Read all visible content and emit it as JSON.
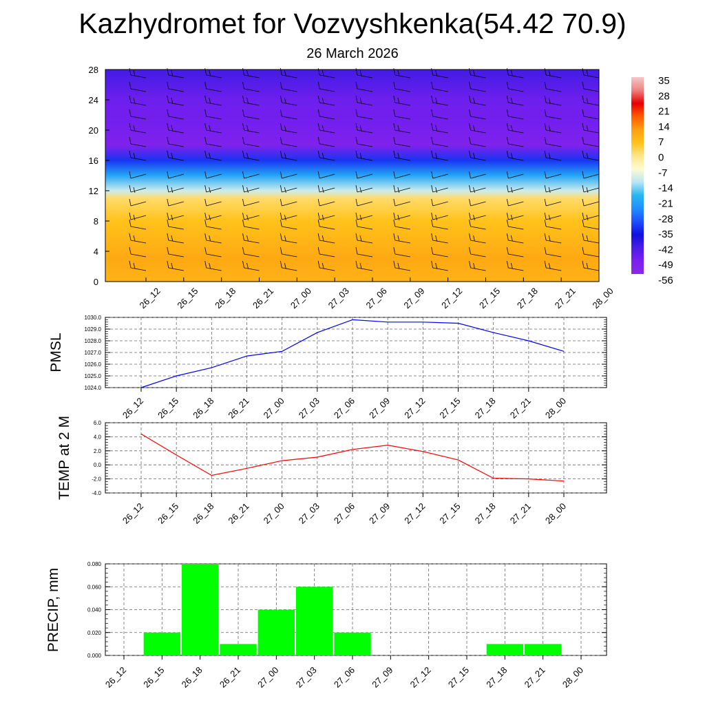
{
  "title": "Kazhydromet for Vozvyshkenka(54.42 70.9)",
  "subtitle": "26 March 2026",
  "colors": {
    "pmsl_line": "#0000ff",
    "temp_line": "#ff0000",
    "precip_bar": "#00ff00",
    "grid": "#666666"
  },
  "time_labels": [
    "26_12",
    "26_15",
    "26_18",
    "26_21",
    "27_00",
    "27_03",
    "27_06",
    "27_09",
    "27_12",
    "27_15",
    "27_18",
    "27_21",
    "28_00"
  ],
  "chart_data": [
    {
      "type": "heatmap",
      "name_hint": "vertical-section",
      "x": [
        "26_12",
        "26_15",
        "26_18",
        "26_21",
        "27_00",
        "27_03",
        "27_06",
        "27_09",
        "27_12",
        "27_15",
        "27_18",
        "27_21",
        "28_00"
      ],
      "yticks": [
        "0",
        "4",
        "8",
        "12",
        "16",
        "20",
        "24",
        "28"
      ],
      "ylim": [
        0,
        28
      ],
      "colorbar_labels": [
        "35",
        "28",
        "21",
        "14",
        "7",
        "0",
        "-7",
        "-14",
        "-21",
        "-28",
        "-35",
        "-42",
        "-49",
        "-56"
      ],
      "colorbar_range": [
        -63,
        42
      ],
      "profile": [
        {
          "y": 0,
          "value": 10
        },
        {
          "y": 3,
          "value": 12
        },
        {
          "y": 8,
          "value": 7
        },
        {
          "y": 11,
          "value": 2
        },
        {
          "y": 12,
          "value": -12
        },
        {
          "y": 14,
          "value": -24
        },
        {
          "y": 16,
          "value": -38
        },
        {
          "y": 18,
          "value": -58
        },
        {
          "y": 21,
          "value": -55
        },
        {
          "y": 24,
          "value": -54
        },
        {
          "y": 28,
          "value": -48
        }
      ]
    },
    {
      "type": "line",
      "ylabel": "PMSL",
      "x": [
        "26_12",
        "26_15",
        "26_18",
        "26_21",
        "27_00",
        "27_03",
        "27_06",
        "27_09",
        "27_12",
        "27_15",
        "27_18",
        "27_21",
        "28_00"
      ],
      "values": [
        1024.0,
        1025.0,
        1025.7,
        1026.7,
        1027.1,
        1028.7,
        1029.8,
        1029.6,
        1029.6,
        1029.5,
        1028.7,
        1028.0,
        1027.1
      ],
      "ylim": [
        1024.0,
        1030.0
      ],
      "yticks": [
        "1024.0",
        "1025.0",
        "1026.0",
        "1027.0",
        "1028.0",
        "1029.0",
        "1030.0"
      ]
    },
    {
      "type": "line",
      "ylabel": "TEMP at 2 M",
      "x": [
        "26_12",
        "26_15",
        "26_18",
        "26_21",
        "27_00",
        "27_03",
        "27_06",
        "27_09",
        "27_12",
        "27_15",
        "27_18",
        "27_21",
        "28_00"
      ],
      "values": [
        4.4,
        1.4,
        -1.5,
        -0.5,
        0.6,
        1.1,
        2.2,
        2.8,
        1.9,
        0.7,
        -1.9,
        -2.0,
        -2.3
      ],
      "ylim": [
        -4.0,
        6.0
      ],
      "yticks": [
        "-4.0",
        "-2.0",
        "0.0",
        "2.0",
        "4.0",
        "6.0"
      ]
    },
    {
      "type": "bar",
      "ylabel": "PRECIP, mm",
      "categories": [
        "26_15",
        "26_18",
        "26_21",
        "27_00",
        "27_03",
        "27_06",
        "27_09",
        "27_12",
        "27_15",
        "27_18",
        "27_21",
        "28_00"
      ],
      "values": [
        0.02,
        0.08,
        0.01,
        0.04,
        0.06,
        0.02,
        0,
        0,
        0,
        0.01,
        0.01,
        0
      ],
      "xticks": [
        "26_12",
        "26_15",
        "26_18",
        "26_21",
        "27_00",
        "27_03",
        "27_06",
        "27_09",
        "27_12",
        "27_15",
        "27_18",
        "27_21",
        "28_00"
      ],
      "ylim": [
        0,
        0.08
      ],
      "yticks": [
        "0.000",
        "0.020",
        "0.040",
        "0.060",
        "0.080"
      ]
    }
  ]
}
